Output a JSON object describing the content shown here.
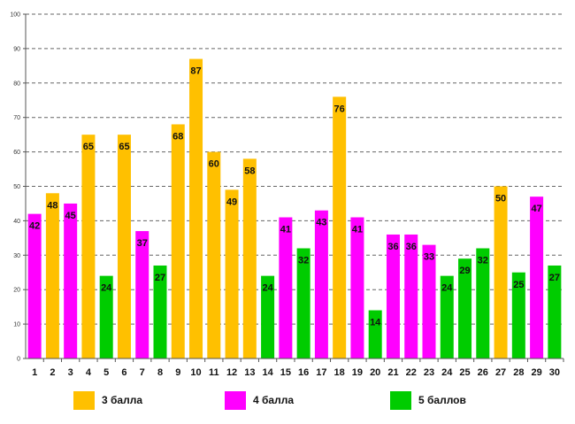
{
  "chart_data": {
    "type": "bar",
    "title": "",
    "xlabel": "",
    "ylabel": "",
    "ylim": [
      0,
      100
    ],
    "yticks": [
      0,
      10,
      20,
      30,
      40,
      50,
      60,
      70,
      80,
      90,
      100
    ],
    "grid": true,
    "categories": [
      "1",
      "2",
      "3",
      "4",
      "5",
      "6",
      "7",
      "8",
      "9",
      "10",
      "11",
      "12",
      "13",
      "14",
      "15",
      "16",
      "17",
      "18",
      "19",
      "20",
      "21",
      "22",
      "23",
      "24",
      "25",
      "26",
      "27",
      "28",
      "29",
      "30"
    ],
    "values": [
      42,
      48,
      45,
      65,
      24,
      65,
      37,
      27,
      68,
      87,
      60,
      49,
      58,
      24,
      41,
      32,
      43,
      76,
      41,
      14,
      36,
      36,
      33,
      24,
      29,
      32,
      50,
      25,
      47,
      27
    ],
    "groups": [
      "4",
      "3",
      "4",
      "3",
      "5",
      "3",
      "4",
      "5",
      "3",
      "3",
      "3",
      "3",
      "3",
      "5",
      "4",
      "5",
      "4",
      "3",
      "4",
      "5",
      "4",
      "4",
      "4",
      "5",
      "5",
      "5",
      "3",
      "5",
      "4",
      "5"
    ],
    "legend": [
      {
        "key": "3",
        "label": "3 балла",
        "color": "#FFC000"
      },
      {
        "key": "4",
        "label": "4 балла",
        "color": "#FF00FF"
      },
      {
        "key": "5",
        "label": "5 баллов",
        "color": "#00CC00"
      }
    ],
    "legend_position": "bottom"
  }
}
